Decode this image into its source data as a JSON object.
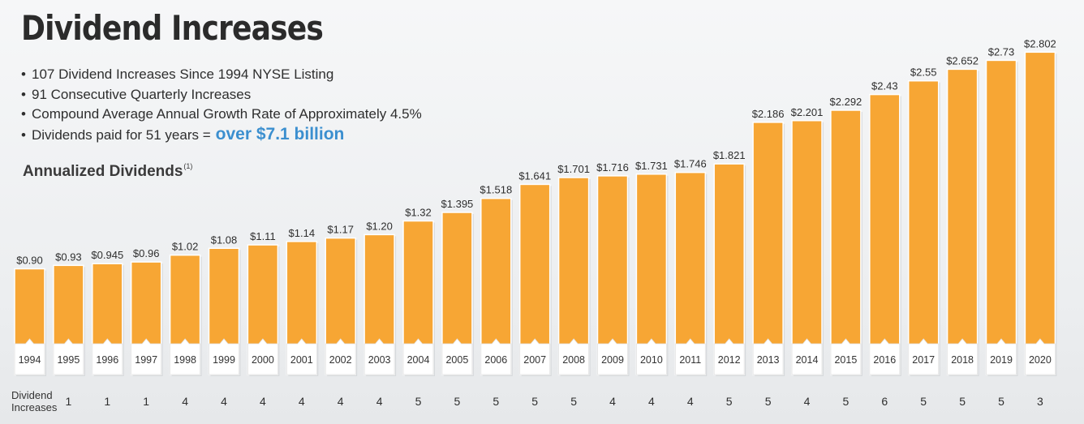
{
  "title": "Dividend Increases",
  "bullets": [
    "107 Dividend Increases Since 1994 NYSE Listing",
    "91 Consecutive Quarterly Increases",
    "Compound Average Annual Growth Rate of Approximately 4.5%",
    "Dividends paid for 51 years ="
  ],
  "highlight": "over $7.1 billion",
  "subtitle": "Annualized Dividends",
  "subtitle_note": "(1)",
  "increases_label": [
    "Dividend",
    "Increases"
  ],
  "colors": {
    "bar": "#f7a634",
    "bar_light": "#f9b24a",
    "highlight": "#3b8fcf",
    "year_band": "#ffffff"
  },
  "chart_data": {
    "type": "bar",
    "title": "Annualized Dividends",
    "categories": [
      "1994",
      "1995",
      "1996",
      "1997",
      "1998",
      "1999",
      "2000",
      "2001",
      "2002",
      "2003",
      "2004",
      "2005",
      "2006",
      "2007",
      "2008",
      "2009",
      "2010",
      "2011",
      "2012",
      "2013",
      "2014",
      "2015",
      "2016",
      "2017",
      "2018",
      "2019",
      "2020"
    ],
    "values": [
      0.9,
      0.93,
      0.945,
      0.96,
      1.02,
      1.08,
      1.11,
      1.14,
      1.17,
      1.2,
      1.32,
      1.395,
      1.518,
      1.641,
      1.701,
      1.716,
      1.731,
      1.746,
      1.821,
      2.186,
      2.201,
      2.292,
      2.43,
      2.55,
      2.652,
      2.73,
      2.802
    ],
    "value_labels": [
      "$0.90",
      "$0.93",
      "$0.945",
      "$0.96",
      "$1.02",
      "$1.08",
      "$1.11",
      "$1.14",
      "$1.17",
      "$1.20",
      "$1.32",
      "$1.395",
      "$1.518",
      "$1.641",
      "$1.701",
      "$1.716",
      "$1.731",
      "$1.746",
      "$1.821",
      "$2.186",
      "$2.201",
      "$2.292",
      "$2.43",
      "$2.55",
      "$2.652",
      "$2.73",
      "$2.802"
    ],
    "increases": [
      "1",
      "1",
      "1",
      "4",
      "4",
      "4",
      "4",
      "4",
      "4",
      "5",
      "5",
      "5",
      "5",
      "5",
      "4",
      "4",
      "4",
      "5",
      "5",
      "4",
      "5",
      "6",
      "5",
      "5",
      "5",
      "3"
    ],
    "increases_full": [
      "1",
      "1",
      "1",
      "4",
      "4",
      "4",
      "4",
      "4",
      "4",
      "5",
      "5",
      "5",
      "5",
      "5",
      "4",
      "4",
      "4",
      "5",
      "5",
      "4",
      "5",
      "6",
      "5",
      "5",
      "5",
      "3"
    ],
    "xlabel": "",
    "ylabel": "",
    "grid": false,
    "legend": "none"
  }
}
